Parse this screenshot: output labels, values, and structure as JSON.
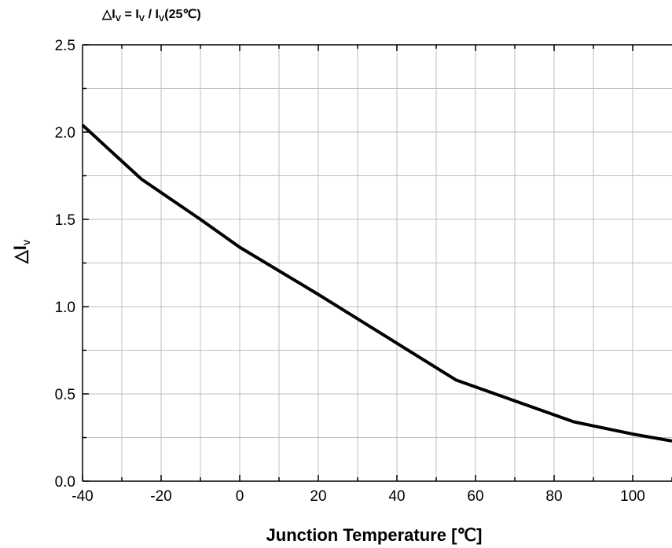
{
  "chart_data": {
    "type": "line",
    "title": {
      "prefix": "△I",
      "sub1": "V",
      "mid1": " = I",
      "sub2": "V",
      "mid2": " / I",
      "sub3": "V",
      "suffix": "(25℃)"
    },
    "xlabel": "Junction Temperature [℃]",
    "ylabel": {
      "main": "△I",
      "sub": "V"
    },
    "xlim": [
      -40,
      110
    ],
    "ylim": [
      0,
      2.5
    ],
    "x_ticks": [
      -40,
      -20,
      0,
      20,
      40,
      60,
      80,
      100
    ],
    "x_tick_labels": [
      "-40",
      "-20",
      "0",
      "20",
      "40",
      "60",
      "80",
      "100"
    ],
    "y_ticks": [
      0,
      0.5,
      1.0,
      1.5,
      2.0,
      2.5
    ],
    "y_tick_labels": [
      "0.0",
      "0.5",
      "1.0",
      "1.5",
      "2.0",
      "2.5"
    ],
    "grid": true,
    "series": [
      {
        "x": [
          -40,
          -25,
          -10,
          0,
          20,
          40,
          55,
          70,
          85,
          100,
          110
        ],
        "y": [
          2.04,
          1.73,
          1.5,
          1.34,
          1.07,
          0.79,
          0.58,
          0.46,
          0.34,
          0.27,
          0.23
        ]
      }
    ],
    "colors": {
      "line": "#000000",
      "grid": "#bfbfbf",
      "axis": "#000000"
    }
  }
}
